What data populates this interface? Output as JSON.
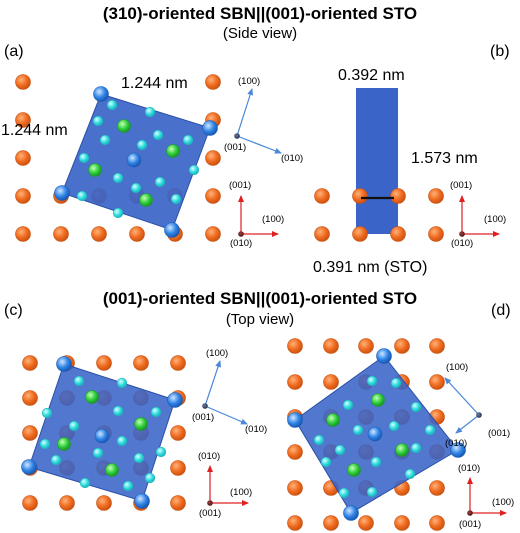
{
  "top_section": {
    "title": "(310)-oriented SBN||(001)-oriented STO",
    "subtitle": "(Side view)"
  },
  "bottom_section": {
    "title": "(001)-oriented SBN||(001)-oriented STO",
    "subtitle": "(Top view)"
  },
  "panels": {
    "a": {
      "label": "(a)",
      "dim_top": "1.244 nm",
      "dim_left": "1.244 nm",
      "rot_axes": {
        "up": "(100)",
        "center": "(001)",
        "side": "(010)"
      },
      "std_axes": {
        "up": "(001)",
        "right": "(100)",
        "origin": "(010)"
      }
    },
    "b": {
      "label": "(b)",
      "dim_top": "0.392 nm",
      "dim_right": "1.573 nm",
      "dim_bottom": "0.391 nm (STO)",
      "std_axes": {
        "up": "(001)",
        "right": "(100)",
        "origin": "(010)"
      }
    },
    "c": {
      "label": "(c)",
      "rot_axes": {
        "up": "(100)",
        "center": "(001)",
        "side": "(010)"
      },
      "std_axes": {
        "up": "(010)",
        "right": "(100)",
        "origin": "(001)"
      }
    },
    "d": {
      "label": "(d)",
      "rot_axes": {
        "up": "(100)",
        "center": "(001)",
        "side": "(010)"
      },
      "std_axes": {
        "up": "(010)",
        "right": "(100)",
        "origin": "(001)"
      }
    }
  },
  "colors": {
    "sto_atom": "#ef6b1f",
    "sbn_cell": "#3a64c7",
    "corner_atom": "#1e6fd0",
    "cyan_atom": "#33dde0",
    "green_atom": "#2ecf3a",
    "blue_atom": "#2f84e6",
    "axis_red": "#e02020",
    "axis_blue": "#4a88d8"
  }
}
